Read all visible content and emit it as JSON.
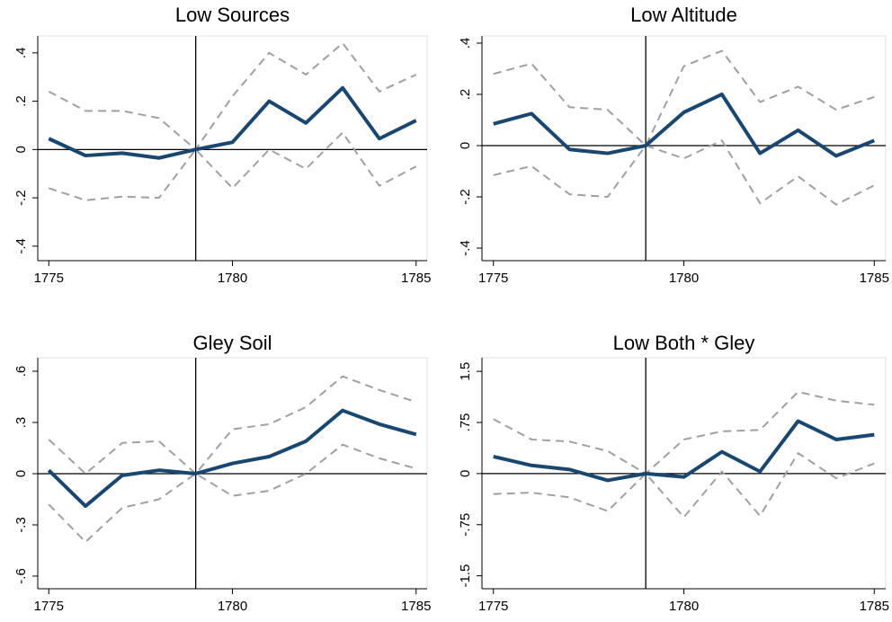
{
  "chart_data": [
    {
      "type": "line",
      "title": "Low Sources",
      "x": [
        1775,
        1776,
        1777,
        1778,
        1779,
        1780,
        1781,
        1782,
        1783,
        1784,
        1785
      ],
      "xlim": [
        1774.7,
        1785.3
      ],
      "xticks": [
        1775,
        1780,
        1785
      ],
      "ylim": [
        -0.46,
        0.47
      ],
      "yticks": [
        {
          "value": -0.4,
          "label": "-.4"
        },
        {
          "value": -0.2,
          "label": "-.2"
        },
        0,
        {
          "value": 0.2,
          "label": ".2"
        },
        {
          "value": 0.4,
          "label": ".4"
        }
      ],
      "vline": 1779,
      "hline": 0,
      "series": [
        {
          "color": "#a0a0a0",
          "style": "dashed",
          "values": [
            0.24,
            0.16,
            0.16,
            0.13,
            0,
            0.22,
            0.4,
            0.31,
            0.44,
            0.24,
            0.31
          ]
        },
        {
          "color": "#a0a0a0",
          "style": "dashed",
          "values": [
            -0.16,
            -0.21,
            -0.195,
            -0.2,
            0,
            -0.16,
            0.0,
            -0.08,
            0.07,
            -0.15,
            -0.07
          ]
        },
        {
          "color": "#1a476f",
          "style": "solid",
          "values": [
            0.045,
            -0.025,
            -0.015,
            -0.035,
            0,
            0.03,
            0.2,
            0.11,
            0.255,
            0.045,
            0.12
          ]
        }
      ]
    },
    {
      "type": "line",
      "title": "Low Altitude",
      "x": [
        1775,
        1776,
        1777,
        1778,
        1779,
        1780,
        1781,
        1782,
        1783,
        1784,
        1785
      ],
      "xlim": [
        1774.7,
        1785.3
      ],
      "xticks": [
        1775,
        1780,
        1785
      ],
      "ylim": [
        -0.449,
        0.428
      ],
      "yticks": [
        {
          "value": -0.4,
          "label": "-.4"
        },
        {
          "value": -0.2,
          "label": "-.2"
        },
        0,
        {
          "value": 0.2,
          "label": ".2"
        },
        {
          "value": 0.4,
          "label": ".4"
        }
      ],
      "vline": 1779,
      "hline": 0,
      "series": [
        {
          "color": "#a0a0a0",
          "style": "dashed",
          "values": [
            0.28,
            0.32,
            0.15,
            0.14,
            0,
            0.31,
            0.37,
            0.17,
            0.23,
            0.14,
            0.19
          ]
        },
        {
          "color": "#a0a0a0",
          "style": "dashed",
          "values": [
            -0.115,
            -0.08,
            -0.19,
            -0.2,
            0,
            -0.05,
            0.02,
            -0.225,
            -0.12,
            -0.23,
            -0.155
          ]
        },
        {
          "color": "#1a476f",
          "style": "solid",
          "values": [
            0.085,
            0.125,
            -0.015,
            -0.03,
            0,
            0.13,
            0.2,
            -0.03,
            0.06,
            -0.04,
            0.02
          ]
        }
      ]
    },
    {
      "type": "line",
      "title": "Gley Soil",
      "x": [
        1775,
        1776,
        1777,
        1778,
        1779,
        1780,
        1781,
        1782,
        1783,
        1784,
        1785
      ],
      "xlim": [
        1774.7,
        1785.3
      ],
      "xticks": [
        1775,
        1780,
        1785
      ],
      "ylim": [
        -0.674,
        0.679
      ],
      "yticks": [
        {
          "value": -0.6,
          "label": "-.6"
        },
        {
          "value": -0.3,
          "label": "-.3"
        },
        0,
        {
          "value": 0.3,
          "label": ".3"
        },
        {
          "value": 0.6,
          "label": ".6"
        }
      ],
      "vline": 1779,
      "hline": 0,
      "series": [
        {
          "color": "#a0a0a0",
          "style": "dashed",
          "values": [
            0.2,
            0.0,
            0.18,
            0.19,
            0,
            0.26,
            0.29,
            0.39,
            0.57,
            0.49,
            0.42
          ]
        },
        {
          "color": "#a0a0a0",
          "style": "dashed",
          "values": [
            -0.18,
            -0.4,
            -0.2,
            -0.15,
            0,
            -0.13,
            -0.1,
            0.0,
            0.17,
            0.09,
            0.03
          ]
        },
        {
          "color": "#1a476f",
          "style": "solid",
          "values": [
            0.02,
            -0.19,
            -0.01,
            0.02,
            0,
            0.06,
            0.1,
            0.19,
            0.37,
            0.29,
            0.23
          ]
        }
      ]
    },
    {
      "type": "line",
      "title": "Low Both * Gley",
      "x": [
        1775,
        1776,
        1777,
        1778,
        1779,
        1780,
        1781,
        1782,
        1783,
        1784,
        1785
      ],
      "xlim": [
        1774.7,
        1785.3
      ],
      "xticks": [
        1775,
        1780,
        1785
      ],
      "ylim": [
        -1.69,
        1.7
      ],
      "yticks": [
        {
          "value": -1.5,
          "label": "-1.5"
        },
        {
          "value": -0.75,
          "label": "-.75"
        },
        0,
        {
          "value": 0.75,
          "label": ".75"
        },
        1.5
      ],
      "vline": 1779,
      "hline": 0,
      "series": [
        {
          "color": "#a0a0a0",
          "style": "dashed",
          "values": [
            0.8,
            0.5,
            0.47,
            0.33,
            0,
            0.5,
            0.62,
            0.64,
            1.2,
            1.07,
            1.01
          ]
        },
        {
          "color": "#a0a0a0",
          "style": "dashed",
          "values": [
            -0.3,
            -0.28,
            -0.35,
            -0.55,
            0,
            -0.64,
            0.03,
            -0.62,
            0.3,
            -0.07,
            0.15
          ]
        },
        {
          "color": "#1a476f",
          "style": "solid",
          "values": [
            0.25,
            0.12,
            0.06,
            -0.1,
            0,
            -0.05,
            0.32,
            0.03,
            0.77,
            0.5,
            0.57
          ]
        }
      ]
    }
  ]
}
